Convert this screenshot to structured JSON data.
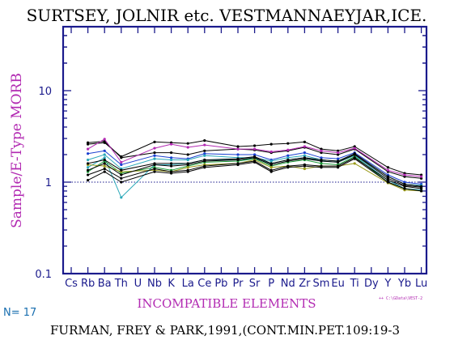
{
  "chart_data": {
    "type": "line",
    "title": "SURTSEY, JOLNIR etc. VESTMANNAEYJAR,ICE.",
    "xlabel": "INCOMPATIBLE ELEMENTS",
    "ylabel": "Sample/E-Type MORB",
    "yscale": "log",
    "ylim": [
      0.1,
      50
    ],
    "yticks": [
      "0.1",
      "1",
      "10"
    ],
    "reference_line": 1,
    "categories": [
      "Cs",
      "Rb",
      "Ba",
      "Th",
      "U",
      "Nb",
      "K",
      "La",
      "Ce",
      "Pb",
      "Pr",
      "Sr",
      "P",
      "Nd",
      "Zr",
      "Sm",
      "Eu",
      "Ti",
      "Dy",
      "Y",
      "Yb",
      "Lu"
    ],
    "series": [
      {
        "color": "#000000",
        "points": [
          [
            1,
            2.7
          ],
          [
            2,
            2.8
          ],
          [
            3,
            1.85
          ],
          [
            5,
            2.1
          ],
          [
            6,
            2.1
          ],
          [
            7,
            2.0
          ],
          [
            8,
            2.2
          ],
          [
            10,
            2.3
          ],
          [
            11,
            2.25
          ],
          [
            12,
            2.1
          ],
          [
            13,
            2.2
          ],
          [
            14,
            2.4
          ],
          [
            15,
            2.1
          ],
          [
            16,
            2.0
          ],
          [
            17,
            2.3
          ],
          [
            19,
            1.3
          ],
          [
            20,
            1.15
          ],
          [
            21,
            1.1
          ]
        ]
      },
      {
        "color": "#000000",
        "points": [
          [
            1,
            2.6
          ],
          [
            2,
            2.7
          ],
          [
            3,
            1.9
          ],
          [
            5,
            2.75
          ],
          [
            6,
            2.7
          ],
          [
            7,
            2.65
          ],
          [
            8,
            2.85
          ],
          [
            10,
            2.45
          ],
          [
            11,
            2.5
          ],
          [
            12,
            2.6
          ],
          [
            13,
            2.65
          ],
          [
            14,
            2.75
          ],
          [
            15,
            2.3
          ],
          [
            16,
            2.2
          ],
          [
            17,
            2.45
          ],
          [
            19,
            1.45
          ],
          [
            20,
            1.25
          ],
          [
            21,
            1.2
          ]
        ]
      },
      {
        "color": "#b22ab2",
        "points": [
          [
            1,
            2.3
          ],
          [
            2,
            2.95
          ],
          [
            3,
            1.65
          ],
          [
            5,
            2.35
          ],
          [
            6,
            2.6
          ],
          [
            7,
            2.4
          ],
          [
            8,
            2.55
          ],
          [
            10,
            2.3
          ],
          [
            11,
            2.3
          ],
          [
            12,
            2.15
          ],
          [
            13,
            2.25
          ],
          [
            14,
            2.45
          ],
          [
            15,
            2.2
          ],
          [
            16,
            2.1
          ],
          [
            17,
            2.35
          ],
          [
            19,
            1.35
          ],
          [
            20,
            1.2
          ],
          [
            21,
            1.15
          ]
        ]
      },
      {
        "color": "#1a3fd0",
        "points": [
          [
            1,
            2.05
          ],
          [
            2,
            2.2
          ],
          [
            3,
            1.55
          ],
          [
            5,
            1.95
          ],
          [
            6,
            1.85
          ],
          [
            7,
            1.8
          ],
          [
            8,
            2.05
          ],
          [
            10,
            2.0
          ],
          [
            11,
            2.0
          ],
          [
            12,
            1.75
          ],
          [
            13,
            1.95
          ],
          [
            14,
            2.1
          ],
          [
            15,
            1.85
          ],
          [
            16,
            1.8
          ],
          [
            17,
            2.1
          ],
          [
            19,
            1.2
          ],
          [
            20,
            1.0
          ],
          [
            21,
            0.95
          ]
        ]
      },
      {
        "color": "#2aa8b8",
        "points": [
          [
            1,
            1.75
          ],
          [
            2,
            2.0
          ],
          [
            3,
            1.4
          ],
          [
            5,
            1.8
          ],
          [
            6,
            1.75
          ],
          [
            7,
            1.75
          ],
          [
            8,
            1.95
          ],
          [
            10,
            1.85
          ],
          [
            11,
            1.85
          ],
          [
            12,
            1.7
          ],
          [
            13,
            1.85
          ],
          [
            14,
            1.95
          ],
          [
            15,
            1.75
          ],
          [
            16,
            1.7
          ],
          [
            17,
            2.0
          ],
          [
            19,
            1.15
          ],
          [
            20,
            0.95
          ],
          [
            21,
            0.92
          ]
        ]
      },
      {
        "color": "#2aa8b8",
        "points": [
          [
            1,
            1.45
          ],
          [
            2,
            1.85
          ],
          [
            3,
            0.68
          ],
          [
            5,
            1.55
          ],
          [
            6,
            1.55
          ],
          [
            7,
            1.6
          ],
          [
            8,
            1.75
          ],
          [
            10,
            1.75
          ],
          [
            11,
            1.8
          ],
          [
            12,
            1.6
          ],
          [
            13,
            1.75
          ],
          [
            14,
            1.85
          ],
          [
            15,
            1.7
          ],
          [
            16,
            1.65
          ],
          [
            17,
            1.95
          ],
          [
            19,
            1.05
          ],
          [
            20,
            0.85
          ],
          [
            21,
            0.82
          ]
        ]
      },
      {
        "color": "#1e9a3a",
        "points": [
          [
            1,
            1.3
          ],
          [
            2,
            1.7
          ],
          [
            3,
            1.25
          ],
          [
            5,
            1.45
          ],
          [
            6,
            1.35
          ],
          [
            7,
            1.5
          ],
          [
            8,
            1.65
          ],
          [
            10,
            1.7
          ],
          [
            11,
            1.8
          ],
          [
            12,
            1.5
          ],
          [
            13,
            1.65
          ],
          [
            14,
            1.75
          ],
          [
            15,
            1.6
          ],
          [
            16,
            1.55
          ],
          [
            17,
            1.9
          ],
          [
            19,
            1.0
          ],
          [
            20,
            0.85
          ],
          [
            21,
            0.8
          ]
        ]
      },
      {
        "color": "#9a9a1a",
        "points": [
          [
            1,
            1.55
          ],
          [
            2,
            1.5
          ],
          [
            3,
            1.3
          ],
          [
            5,
            1.35
          ],
          [
            6,
            1.3
          ],
          [
            7,
            1.45
          ],
          [
            8,
            1.55
          ],
          [
            10,
            1.6
          ],
          [
            11,
            1.75
          ],
          [
            12,
            1.45
          ],
          [
            13,
            1.5
          ],
          [
            14,
            1.4
          ],
          [
            15,
            1.5
          ],
          [
            16,
            1.5
          ],
          [
            17,
            1.6
          ],
          [
            19,
            0.98
          ],
          [
            20,
            0.82
          ],
          [
            21,
            0.8
          ]
        ]
      },
      {
        "color": "#000000",
        "points": [
          [
            1,
            1.2
          ],
          [
            2,
            1.4
          ],
          [
            3,
            1.1
          ],
          [
            5,
            1.4
          ],
          [
            6,
            1.3
          ],
          [
            7,
            1.35
          ],
          [
            8,
            1.5
          ],
          [
            10,
            1.6
          ],
          [
            11,
            1.7
          ],
          [
            12,
            1.35
          ],
          [
            13,
            1.5
          ],
          [
            14,
            1.55
          ],
          [
            15,
            1.5
          ],
          [
            16,
            1.5
          ],
          [
            17,
            1.85
          ],
          [
            19,
            1.05
          ],
          [
            20,
            0.9
          ],
          [
            21,
            0.85
          ]
        ]
      },
      {
        "color": "#000000",
        "points": [
          [
            1,
            1.05
          ],
          [
            2,
            1.3
          ],
          [
            3,
            1.0
          ],
          [
            5,
            1.3
          ],
          [
            6,
            1.25
          ],
          [
            7,
            1.3
          ],
          [
            8,
            1.45
          ],
          [
            10,
            1.55
          ],
          [
            11,
            1.65
          ],
          [
            12,
            1.3
          ],
          [
            13,
            1.45
          ],
          [
            14,
            1.5
          ],
          [
            15,
            1.45
          ],
          [
            16,
            1.45
          ],
          [
            17,
            1.8
          ],
          [
            19,
            1.0
          ],
          [
            20,
            0.85
          ],
          [
            21,
            0.8
          ]
        ]
      },
      {
        "color": "#000000",
        "points": [
          [
            1,
            1.35
          ],
          [
            2,
            1.6
          ],
          [
            3,
            1.2
          ],
          [
            5,
            1.55
          ],
          [
            6,
            1.5
          ],
          [
            7,
            1.55
          ],
          [
            8,
            1.7
          ],
          [
            10,
            1.75
          ],
          [
            11,
            1.85
          ],
          [
            12,
            1.55
          ],
          [
            13,
            1.7
          ],
          [
            14,
            1.8
          ],
          [
            15,
            1.7
          ],
          [
            16,
            1.65
          ],
          [
            17,
            2.0
          ],
          [
            19,
            1.1
          ],
          [
            20,
            0.92
          ],
          [
            21,
            0.88
          ]
        ]
      },
      {
        "color": "#000000",
        "points": [
          [
            1,
            1.6
          ],
          [
            2,
            1.75
          ],
          [
            3,
            1.35
          ],
          [
            5,
            1.6
          ],
          [
            6,
            1.6
          ],
          [
            7,
            1.6
          ],
          [
            8,
            1.75
          ],
          [
            10,
            1.8
          ],
          [
            11,
            1.9
          ],
          [
            12,
            1.6
          ],
          [
            13,
            1.75
          ],
          [
            14,
            1.85
          ],
          [
            15,
            1.75
          ],
          [
            16,
            1.7
          ],
          [
            17,
            2.05
          ],
          [
            19,
            1.15
          ],
          [
            20,
            0.95
          ],
          [
            21,
            0.9
          ]
        ]
      }
    ]
  },
  "footer": {
    "count": "N= 17",
    "citation": "FURMAN, FREY & PARK,1991,(CONT.MIN.PET.109:19-3",
    "file_ref": "++ C:\\GData\\VEST-2"
  },
  "colors": {
    "axis": "#1a1a8c",
    "label": "#b22ab2",
    "reference_line": "#1a1a8c"
  }
}
